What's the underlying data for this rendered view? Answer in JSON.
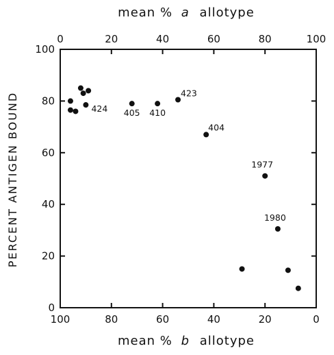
{
  "chart_data": {
    "type": "scatter",
    "title": "",
    "top_axis": {
      "label_prefix": "mean %",
      "label_letter": "a",
      "label_suffix": "allotype",
      "ticks": [
        "0",
        "20",
        "40",
        "60",
        "80",
        "100"
      ],
      "range": [
        0,
        100
      ]
    },
    "bottom_axis": {
      "label_prefix": "mean %",
      "label_letter": "b",
      "label_suffix": "allotype",
      "ticks": [
        "100",
        "80",
        "60",
        "40",
        "20",
        "0"
      ],
      "range": [
        100,
        0
      ]
    },
    "y_axis": {
      "label": "PERCENT ANTIGEN BOUND",
      "ticks": [
        "0",
        "20",
        "40",
        "60",
        "80",
        "100"
      ],
      "range": [
        0,
        100
      ]
    },
    "points": [
      {
        "x": 4,
        "y": 80,
        "label": ""
      },
      {
        "x": 4,
        "y": 76.5,
        "label": ""
      },
      {
        "x": 6,
        "y": 76,
        "label": ""
      },
      {
        "x": 8,
        "y": 85,
        "label": ""
      },
      {
        "x": 9,
        "y": 83,
        "label": ""
      },
      {
        "x": 11,
        "y": 84,
        "label": ""
      },
      {
        "x": 10,
        "y": 78.5,
        "label": "424"
      },
      {
        "x": 28,
        "y": 79,
        "label": "405"
      },
      {
        "x": 38,
        "y": 79,
        "label": "410"
      },
      {
        "x": 46,
        "y": 80.5,
        "label": "423"
      },
      {
        "x": 57,
        "y": 67,
        "label": "404"
      },
      {
        "x": 80,
        "y": 51,
        "label": "1977"
      },
      {
        "x": 85,
        "y": 30.5,
        "label": "1980"
      },
      {
        "x": 71,
        "y": 15,
        "label": ""
      },
      {
        "x": 89,
        "y": 14.5,
        "label": ""
      },
      {
        "x": 93,
        "y": 7.5,
        "label": ""
      }
    ]
  }
}
